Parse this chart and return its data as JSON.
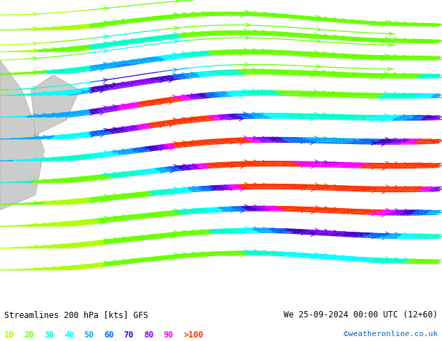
{
  "title_left": "Streamlines 200 hPa [kts] GFS",
  "title_right": "We 25-09-2024 00:00 UTC (12+60)",
  "credit": "©weatheronline.co.uk",
  "legend_values": [
    "10",
    "20",
    "30",
    "40",
    "50",
    "60",
    "70",
    "80",
    "90",
    ">100"
  ],
  "legend_colors": [
    "#aaff00",
    "#00ff00",
    "#00ffaa",
    "#00ffff",
    "#00aaff",
    "#0055ff",
    "#5500ff",
    "#aa00ff",
    "#ff00ff",
    "#ff0000"
  ],
  "background_color": "#ffffff",
  "map_bg_color": "#99ee88",
  "figsize": [
    6.34,
    4.9
  ],
  "dpi": 100,
  "bottom_bar_color": "#ffffff",
  "text_color": "#000000",
  "legend_label_colors": {
    "10": "#aaff00",
    "20": "#66ff00",
    "30": "#00ff88",
    "40": "#00ffff",
    "50": "#00aaff",
    "60": "#0055ff",
    "70": "#5500aa",
    "80": "#aa00ff",
    "90": "#ff00ff",
    ">100": "#ff4400"
  }
}
